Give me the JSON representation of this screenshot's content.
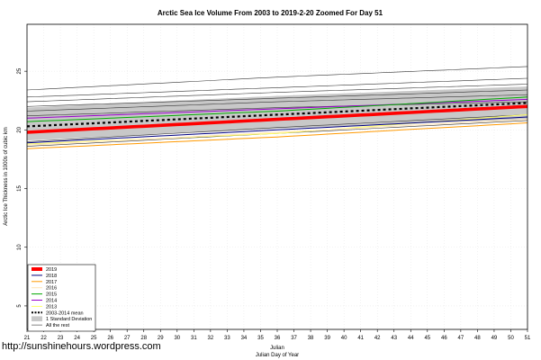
{
  "chart_data": {
    "type": "line",
    "title": "Arctic Sea Ice Volume From 2003 to 2019-2-20 Zoomed For Day 51",
    "xlabel": "Julian",
    "xlabel2": "Julian Day of Year",
    "ylabel": "Arctic Ice Thickness in 1000s of cubic km",
    "xlim": [
      21,
      51
    ],
    "ylim": [
      3,
      29
    ],
    "x_ticks": [
      21,
      22,
      23,
      24,
      25,
      26,
      27,
      28,
      29,
      30,
      31,
      32,
      33,
      34,
      35,
      36,
      37,
      38,
      39,
      40,
      41,
      42,
      43,
      44,
      45,
      46,
      47,
      48,
      49,
      50,
      51
    ],
    "y_ticks": [
      5,
      10,
      15,
      20,
      25
    ],
    "grid": true,
    "legend_position": "bottom-left",
    "std_band": {
      "label": "1 Standard Deviation",
      "color": "#c8c8c8",
      "x": [
        21,
        36,
        51
      ],
      "upper": [
        21.9,
        22.9,
        23.7
      ],
      "lower": [
        19.1,
        20.1,
        20.9
      ]
    },
    "mean": {
      "label": "2003-2014 mean",
      "color": "#000000",
      "x": [
        21,
        36,
        51
      ],
      "y": [
        20.3,
        21.3,
        22.3
      ]
    },
    "series": [
      {
        "name": "2019",
        "color": "#ff0000",
        "x": [
          21,
          36,
          51
        ],
        "y": [
          19.8,
          20.9,
          22.0
        ]
      },
      {
        "name": "2018",
        "color": "#000080",
        "x": [
          21,
          36,
          51
        ],
        "y": [
          18.9,
          20.0,
          21.1
        ]
      },
      {
        "name": "2017",
        "color": "#ff9900",
        "x": [
          21,
          36,
          51
        ],
        "y": [
          18.4,
          19.4,
          20.6
        ]
      },
      {
        "name": "2016",
        "color": "#ffe4b5",
        "x": [
          21,
          36,
          51
        ],
        "y": [
          18.7,
          19.8,
          20.9
        ]
      },
      {
        "name": "2015",
        "color": "#00aa00",
        "x": [
          21,
          36,
          51
        ],
        "y": [
          20.7,
          21.6,
          22.8
        ]
      },
      {
        "name": "2014",
        "color": "#9900cc",
        "x": [
          21,
          36,
          51
        ],
        "y": [
          21.0,
          21.8,
          22.6
        ]
      },
      {
        "name": "2013",
        "color": "#ffff66",
        "x": [
          21,
          36,
          51
        ],
        "y": [
          18.8,
          19.7,
          21.3
        ]
      }
    ],
    "rest": {
      "label": "All the rest",
      "color": "#333333",
      "lines": [
        [
          23.4,
          24.5,
          25.4
        ],
        [
          22.8,
          23.6,
          24.4
        ],
        [
          22.4,
          23.2,
          23.9
        ],
        [
          22.0,
          22.7,
          23.4
        ],
        [
          21.6,
          22.4,
          23.0
        ],
        [
          21.2,
          21.9,
          22.4
        ],
        [
          19.0,
          20.2,
          21.3
        ],
        [
          18.6,
          19.7,
          20.8
        ]
      ]
    }
  },
  "watermark": "http://sunshinehours.wordpress.com"
}
